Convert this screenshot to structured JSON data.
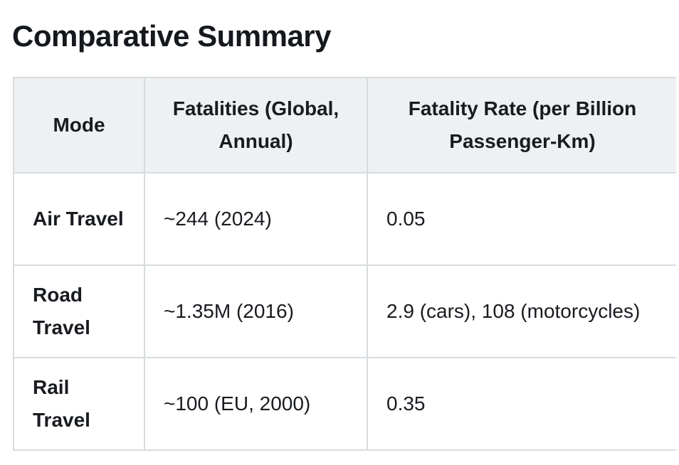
{
  "page": {
    "title": "Comparative Summary"
  },
  "table": {
    "headers": [
      "Mode",
      "Fatalities (Global, Annual)",
      "Fatality Rate (per Billion Passenger-Km)"
    ],
    "rows": [
      {
        "mode": "Air Travel",
        "fatalities": "~244 (2024)",
        "rate": "0.05"
      },
      {
        "mode": "Road Travel",
        "fatalities": "~1.35M (2016)",
        "rate": "2.9 (cars), 108 (motorcycles)"
      },
      {
        "mode": "Rail Travel",
        "fatalities": "~100 (EU, 2000)",
        "rate": "0.35"
      }
    ]
  },
  "colors": {
    "text": "#181b20",
    "heading": "#15181d",
    "border": "#d6dcdf",
    "header_bg": "#eef0f2",
    "page_bg": "#ffffff"
  }
}
